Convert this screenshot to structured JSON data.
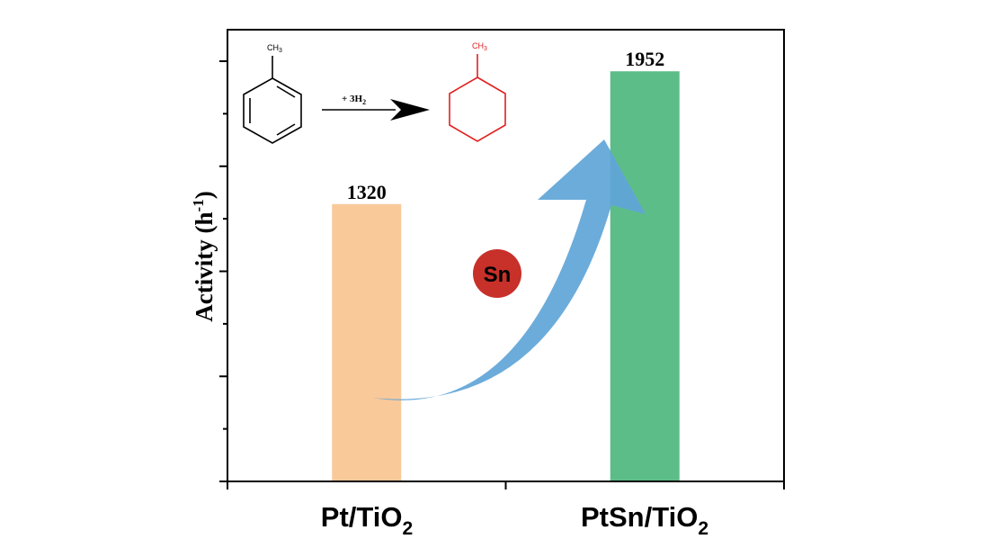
{
  "chart_data": {
    "type": "bar",
    "title": "",
    "xlabel": "",
    "ylabel": "Activity",
    "ylabel_unit": "(h",
    "ylabel_unit_sup": "-1",
    "ylabel_unit_close": ")",
    "categories": [
      {
        "main": "Pt/TiO",
        "sub": "2"
      },
      {
        "main": "PtSn/TiO",
        "sub": "2"
      }
    ],
    "values": [
      1320,
      1952
    ],
    "data_labels": [
      "1320",
      "1952"
    ],
    "bar_colors": [
      "#f9c99a",
      "#5dbd88"
    ],
    "ylim": [
      0,
      2150
    ],
    "y_tick_labels_shown": false,
    "y_major_ticks": [
      0,
      500,
      1000,
      1500,
      2000
    ],
    "y_minor_ticks": [
      250,
      750,
      1250,
      1750
    ],
    "grid": false,
    "legend": "none"
  },
  "annotations": {
    "promoter_badge": {
      "text": "Sn",
      "color": "#c8302a"
    },
    "arrow_color": "#5fa5d8",
    "reaction": {
      "reactant_substituent": "CH",
      "reactant_substituent_sub": "3",
      "reagent": "+ 3H",
      "reagent_sub": "2",
      "product_substituent": "CH",
      "product_substituent_sub": "3",
      "reactant_color": "#000000",
      "product_color": "#e02020"
    }
  }
}
